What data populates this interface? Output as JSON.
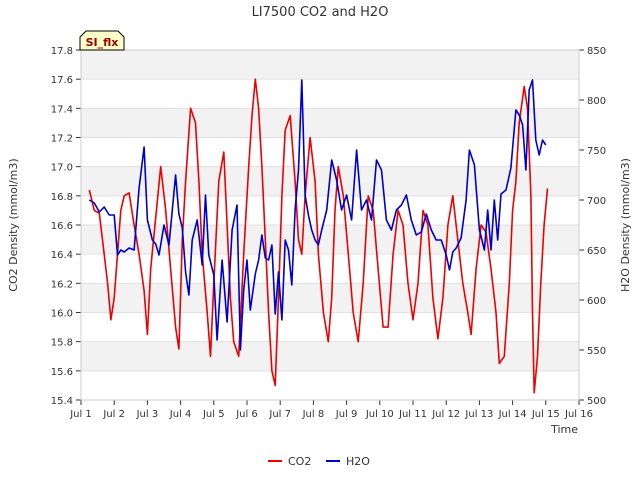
{
  "chart_data": {
    "type": "line",
    "title": "LI7500 CO2 and H2O",
    "xlabel": "Time",
    "ylabel": "CO2 Density (mmol/m3)",
    "y2label": "H2O Density (mmol/m3)",
    "badge": "SI_flx",
    "grid": true,
    "legend_position": "bottom-center",
    "xlim": [
      1,
      16
    ],
    "xticks": [
      {
        "v": 1,
        "label": "Jul 1"
      },
      {
        "v": 2,
        "label": "Jul 2"
      },
      {
        "v": 3,
        "label": "Jul 3"
      },
      {
        "v": 4,
        "label": "Jul 4"
      },
      {
        "v": 5,
        "label": "Jul 5"
      },
      {
        "v": 6,
        "label": "Jul 6"
      },
      {
        "v": 7,
        "label": "Jul 7"
      },
      {
        "v": 8,
        "label": "Jul 8"
      },
      {
        "v": 9,
        "label": "Jul 9"
      },
      {
        "v": 10,
        "label": "Jul 10"
      },
      {
        "v": 11,
        "label": "Jul 11"
      },
      {
        "v": 12,
        "label": "Jul 12"
      },
      {
        "v": 13,
        "label": "Jul 13"
      },
      {
        "v": 14,
        "label": "Jul 14"
      },
      {
        "v": 15,
        "label": "Jul 15"
      },
      {
        "v": 16,
        "label": "Jul 16"
      }
    ],
    "ylim": [
      15.4,
      17.8
    ],
    "yticks": [
      "15.4",
      "15.6",
      "15.8",
      "16.0",
      "16.2",
      "16.4",
      "16.6",
      "16.8",
      "17.0",
      "17.2",
      "17.4",
      "17.6",
      "17.8"
    ],
    "y2lim": [
      500,
      850
    ],
    "y2ticks": [
      "500",
      "550",
      "600",
      "650",
      "700",
      "750",
      "800",
      "850"
    ],
    "series": [
      {
        "name": "CO2",
        "axis": "left",
        "color": "#ee0000",
        "points": [
          [
            1.25,
            16.84
          ],
          [
            1.4,
            16.7
          ],
          [
            1.55,
            16.68
          ],
          [
            1.7,
            16.4
          ],
          [
            1.8,
            16.2
          ],
          [
            1.9,
            15.95
          ],
          [
            2.0,
            16.1
          ],
          [
            2.1,
            16.4
          ],
          [
            2.2,
            16.7
          ],
          [
            2.3,
            16.8
          ],
          [
            2.45,
            16.82
          ],
          [
            2.6,
            16.6
          ],
          [
            2.75,
            16.4
          ],
          [
            2.9,
            16.15
          ],
          [
            3.0,
            15.85
          ],
          [
            3.1,
            16.3
          ],
          [
            3.25,
            16.65
          ],
          [
            3.4,
            17.0
          ],
          [
            3.55,
            16.7
          ],
          [
            3.7,
            16.3
          ],
          [
            3.85,
            15.9
          ],
          [
            3.95,
            15.75
          ],
          [
            4.05,
            16.5
          ],
          [
            4.15,
            16.9
          ],
          [
            4.3,
            17.4
          ],
          [
            4.45,
            17.3
          ],
          [
            4.55,
            16.9
          ],
          [
            4.65,
            16.4
          ],
          [
            4.8,
            16.0
          ],
          [
            4.9,
            15.7
          ],
          [
            5.0,
            16.2
          ],
          [
            5.15,
            16.9
          ],
          [
            5.3,
            17.1
          ],
          [
            5.4,
            16.6
          ],
          [
            5.5,
            16.1
          ],
          [
            5.6,
            15.8
          ],
          [
            5.75,
            15.7
          ],
          [
            5.9,
            16.4
          ],
          [
            6.05,
            17.0
          ],
          [
            6.15,
            17.35
          ],
          [
            6.25,
            17.6
          ],
          [
            6.35,
            17.4
          ],
          [
            6.45,
            17.0
          ],
          [
            6.55,
            16.5
          ],
          [
            6.65,
            16.0
          ],
          [
            6.75,
            15.6
          ],
          [
            6.85,
            15.5
          ],
          [
            6.95,
            16.1
          ],
          [
            7.05,
            16.8
          ],
          [
            7.15,
            17.25
          ],
          [
            7.3,
            17.35
          ],
          [
            7.45,
            16.9
          ],
          [
            7.55,
            16.5
          ],
          [
            7.65,
            16.4
          ],
          [
            7.75,
            16.8
          ],
          [
            7.9,
            17.2
          ],
          [
            8.05,
            16.9
          ],
          [
            8.15,
            16.4
          ],
          [
            8.3,
            16.0
          ],
          [
            8.45,
            15.8
          ],
          [
            8.55,
            16.1
          ],
          [
            8.65,
            16.7
          ],
          [
            8.75,
            17.0
          ],
          [
            8.9,
            16.8
          ],
          [
            9.05,
            16.4
          ],
          [
            9.2,
            16.0
          ],
          [
            9.35,
            15.8
          ],
          [
            9.5,
            16.2
          ],
          [
            9.65,
            16.8
          ],
          [
            9.8,
            16.7
          ],
          [
            9.95,
            16.3
          ],
          [
            10.1,
            15.9
          ],
          [
            10.25,
            15.9
          ],
          [
            10.4,
            16.4
          ],
          [
            10.55,
            16.7
          ],
          [
            10.7,
            16.6
          ],
          [
            10.85,
            16.2
          ],
          [
            11.0,
            15.95
          ],
          [
            11.15,
            16.2
          ],
          [
            11.3,
            16.7
          ],
          [
            11.45,
            16.6
          ],
          [
            11.6,
            16.1
          ],
          [
            11.75,
            15.82
          ],
          [
            11.9,
            16.1
          ],
          [
            12.05,
            16.6
          ],
          [
            12.2,
            16.8
          ],
          [
            12.35,
            16.5
          ],
          [
            12.5,
            16.2
          ],
          [
            12.65,
            16.0
          ],
          [
            12.75,
            15.85
          ],
          [
            12.9,
            16.3
          ],
          [
            13.05,
            16.6
          ],
          [
            13.2,
            16.55
          ],
          [
            13.35,
            16.3
          ],
          [
            13.5,
            16.0
          ],
          [
            13.6,
            15.65
          ],
          [
            13.75,
            15.7
          ],
          [
            13.9,
            16.2
          ],
          [
            14.0,
            16.7
          ],
          [
            14.1,
            16.9
          ],
          [
            14.2,
            17.3
          ],
          [
            14.35,
            17.55
          ],
          [
            14.45,
            17.4
          ],
          [
            14.55,
            16.8
          ],
          [
            14.6,
            16.0
          ],
          [
            14.65,
            15.45
          ],
          [
            14.75,
            15.7
          ],
          [
            14.85,
            16.2
          ],
          [
            14.95,
            16.6
          ],
          [
            15.05,
            16.85
          ]
        ]
      },
      {
        "name": "H2O",
        "axis": "right",
        "color": "#0000cc",
        "points": [
          [
            1.25,
            700
          ],
          [
            1.4,
            697
          ],
          [
            1.55,
            688
          ],
          [
            1.7,
            693
          ],
          [
            1.85,
            685
          ],
          [
            2.0,
            685
          ],
          [
            2.1,
            645
          ],
          [
            2.2,
            650
          ],
          [
            2.3,
            648
          ],
          [
            2.45,
            652
          ],
          [
            2.6,
            650
          ],
          [
            2.75,
            712
          ],
          [
            2.9,
            753
          ],
          [
            3.0,
            680
          ],
          [
            3.15,
            660
          ],
          [
            3.25,
            656
          ],
          [
            3.35,
            645
          ],
          [
            3.5,
            675
          ],
          [
            3.65,
            655
          ],
          [
            3.75,
            690
          ],
          [
            3.85,
            725
          ],
          [
            3.95,
            686
          ],
          [
            4.05,
            672
          ],
          [
            4.15,
            628
          ],
          [
            4.25,
            605
          ],
          [
            4.35,
            660
          ],
          [
            4.5,
            680
          ],
          [
            4.65,
            635
          ],
          [
            4.75,
            705
          ],
          [
            4.85,
            645
          ],
          [
            5.0,
            625
          ],
          [
            5.1,
            560
          ],
          [
            5.25,
            640
          ],
          [
            5.4,
            578
          ],
          [
            5.55,
            670
          ],
          [
            5.7,
            695
          ],
          [
            5.8,
            550
          ],
          [
            5.9,
            610
          ],
          [
            6.0,
            640
          ],
          [
            6.1,
            590
          ],
          [
            6.25,
            626
          ],
          [
            6.35,
            640
          ],
          [
            6.45,
            665
          ],
          [
            6.55,
            642
          ],
          [
            6.65,
            640
          ],
          [
            6.75,
            655
          ],
          [
            6.85,
            586
          ],
          [
            6.95,
            628
          ],
          [
            7.05,
            580
          ],
          [
            7.15,
            660
          ],
          [
            7.25,
            650
          ],
          [
            7.35,
            615
          ],
          [
            7.45,
            690
          ],
          [
            7.55,
            730
          ],
          [
            7.65,
            820
          ],
          [
            7.75,
            705
          ],
          [
            7.85,
            685
          ],
          [
            7.95,
            670
          ],
          [
            8.05,
            660
          ],
          [
            8.15,
            655
          ],
          [
            8.25,
            670
          ],
          [
            8.4,
            690
          ],
          [
            8.55,
            740
          ],
          [
            8.7,
            720
          ],
          [
            8.85,
            690
          ],
          [
            9.0,
            705
          ],
          [
            9.15,
            680
          ],
          [
            9.3,
            750
          ],
          [
            9.45,
            690
          ],
          [
            9.6,
            700
          ],
          [
            9.75,
            680
          ],
          [
            9.9,
            740
          ],
          [
            10.05,
            730
          ],
          [
            10.2,
            680
          ],
          [
            10.35,
            670
          ],
          [
            10.5,
            690
          ],
          [
            10.65,
            695
          ],
          [
            10.8,
            705
          ],
          [
            10.95,
            680
          ],
          [
            11.1,
            665
          ],
          [
            11.25,
            668
          ],
          [
            11.4,
            686
          ],
          [
            11.55,
            670
          ],
          [
            11.7,
            660
          ],
          [
            11.85,
            660
          ],
          [
            12.0,
            645
          ],
          [
            12.1,
            630
          ],
          [
            12.2,
            648
          ],
          [
            12.3,
            652
          ],
          [
            12.45,
            662
          ],
          [
            12.6,
            700
          ],
          [
            12.7,
            750
          ],
          [
            12.85,
            735
          ],
          [
            13.0,
            670
          ],
          [
            13.15,
            650
          ],
          [
            13.25,
            690
          ],
          [
            13.35,
            650
          ],
          [
            13.45,
            700
          ],
          [
            13.55,
            660
          ],
          [
            13.65,
            706
          ],
          [
            13.8,
            710
          ],
          [
            13.95,
            732
          ],
          [
            14.1,
            790
          ],
          [
            14.2,
            785
          ],
          [
            14.3,
            775
          ],
          [
            14.4,
            730
          ],
          [
            14.5,
            810
          ],
          [
            14.6,
            820
          ],
          [
            14.7,
            760
          ],
          [
            14.8,
            745
          ],
          [
            14.9,
            760
          ],
          [
            15.0,
            755
          ]
        ]
      }
    ]
  }
}
